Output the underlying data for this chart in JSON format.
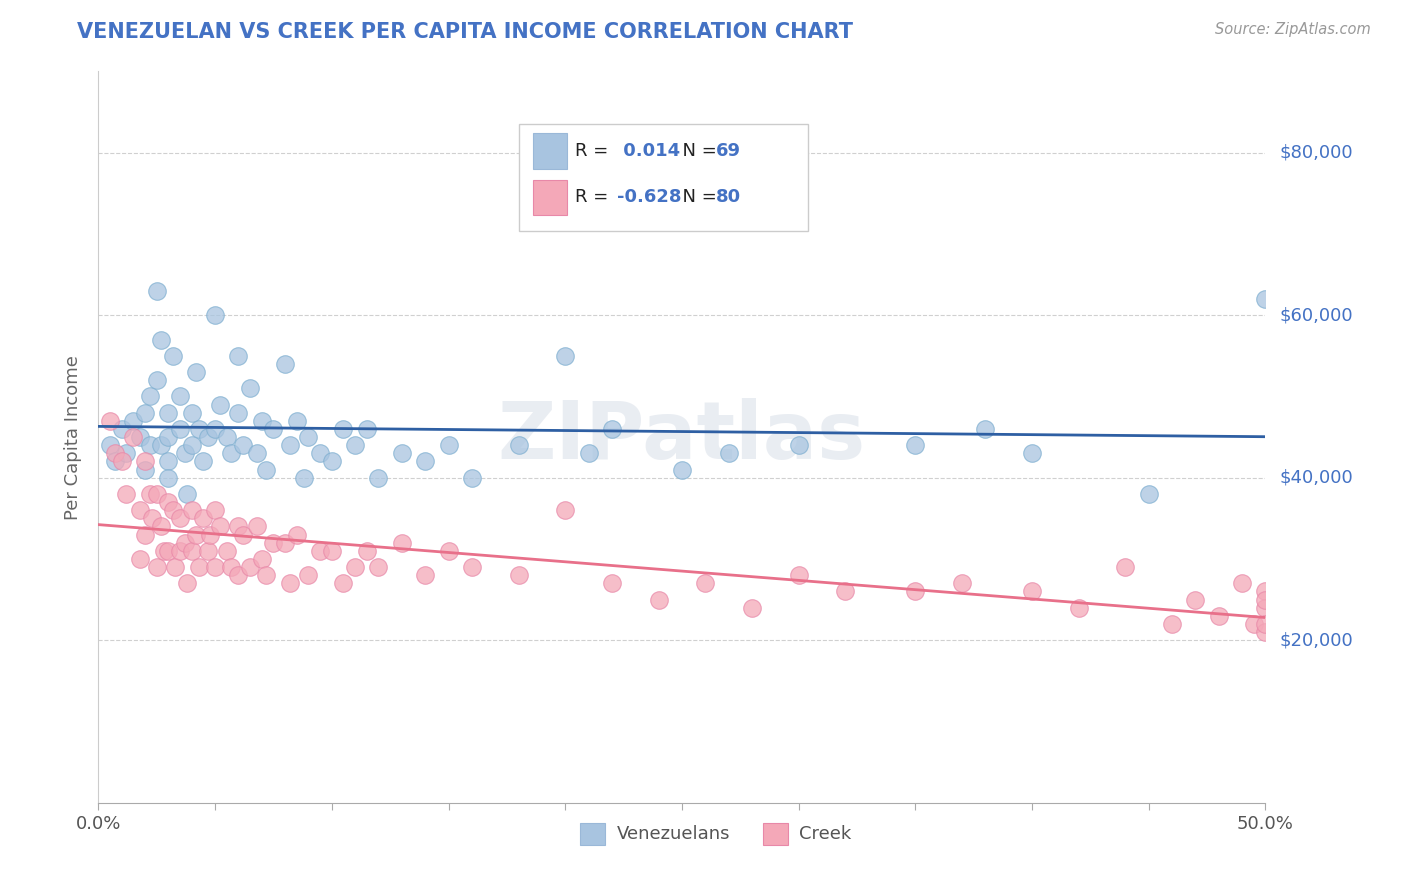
{
  "title": "VENEZUELAN VS CREEK PER CAPITA INCOME CORRELATION CHART",
  "source_text": "Source: ZipAtlas.com",
  "ylabel": "Per Capita Income",
  "xlim": [
    0.0,
    0.5
  ],
  "ylim": [
    0,
    90000
  ],
  "ytick_labels": [
    "$20,000",
    "$40,000",
    "$60,000",
    "$80,000"
  ],
  "ytick_values": [
    20000,
    40000,
    60000,
    80000
  ],
  "xtick_values": [
    0.0,
    0.05,
    0.1,
    0.15,
    0.2,
    0.25,
    0.3,
    0.35,
    0.4,
    0.45,
    0.5
  ],
  "xtick_show_labels": [
    0.0,
    0.5
  ],
  "venezuelan_color": "#a8c4e0",
  "creek_color": "#f4a8b8",
  "venezuelan_line_color": "#2e5fa3",
  "creek_line_color": "#e8708a",
  "legend_venezuelan_color": "#a8c4e0",
  "legend_creek_color": "#f4a8b8",
  "watermark": "ZIPatlas",
  "venezuelan_x": [
    0.005,
    0.007,
    0.01,
    0.012,
    0.015,
    0.018,
    0.02,
    0.02,
    0.022,
    0.022,
    0.025,
    0.025,
    0.027,
    0.027,
    0.03,
    0.03,
    0.03,
    0.03,
    0.032,
    0.035,
    0.035,
    0.037,
    0.038,
    0.04,
    0.04,
    0.042,
    0.043,
    0.045,
    0.047,
    0.05,
    0.05,
    0.052,
    0.055,
    0.057,
    0.06,
    0.06,
    0.062,
    0.065,
    0.068,
    0.07,
    0.072,
    0.075,
    0.08,
    0.082,
    0.085,
    0.088,
    0.09,
    0.095,
    0.1,
    0.105,
    0.11,
    0.115,
    0.12,
    0.13,
    0.14,
    0.15,
    0.16,
    0.18,
    0.2,
    0.21,
    0.22,
    0.25,
    0.27,
    0.3,
    0.35,
    0.38,
    0.4,
    0.45,
    0.5
  ],
  "venezuelan_y": [
    44000,
    42000,
    46000,
    43000,
    47000,
    45000,
    48000,
    41000,
    50000,
    44000,
    52000,
    63000,
    57000,
    44000,
    48000,
    45000,
    42000,
    40000,
    55000,
    46000,
    50000,
    43000,
    38000,
    48000,
    44000,
    53000,
    46000,
    42000,
    45000,
    60000,
    46000,
    49000,
    45000,
    43000,
    55000,
    48000,
    44000,
    51000,
    43000,
    47000,
    41000,
    46000,
    54000,
    44000,
    47000,
    40000,
    45000,
    43000,
    42000,
    46000,
    44000,
    46000,
    40000,
    43000,
    42000,
    44000,
    40000,
    44000,
    55000,
    43000,
    46000,
    41000,
    43000,
    44000,
    44000,
    46000,
    43000,
    38000,
    62000
  ],
  "creek_x": [
    0.005,
    0.007,
    0.01,
    0.012,
    0.015,
    0.018,
    0.018,
    0.02,
    0.02,
    0.022,
    0.023,
    0.025,
    0.025,
    0.027,
    0.028,
    0.03,
    0.03,
    0.032,
    0.033,
    0.035,
    0.035,
    0.037,
    0.038,
    0.04,
    0.04,
    0.042,
    0.043,
    0.045,
    0.047,
    0.048,
    0.05,
    0.05,
    0.052,
    0.055,
    0.057,
    0.06,
    0.06,
    0.062,
    0.065,
    0.068,
    0.07,
    0.072,
    0.075,
    0.08,
    0.082,
    0.085,
    0.09,
    0.095,
    0.1,
    0.105,
    0.11,
    0.115,
    0.12,
    0.13,
    0.14,
    0.15,
    0.16,
    0.18,
    0.2,
    0.22,
    0.24,
    0.26,
    0.28,
    0.3,
    0.32,
    0.35,
    0.37,
    0.4,
    0.42,
    0.44,
    0.46,
    0.47,
    0.48,
    0.49,
    0.495,
    0.5,
    0.5,
    0.5,
    0.5,
    0.5
  ],
  "creek_y": [
    47000,
    43000,
    42000,
    38000,
    45000,
    36000,
    30000,
    42000,
    33000,
    38000,
    35000,
    38000,
    29000,
    34000,
    31000,
    37000,
    31000,
    36000,
    29000,
    35000,
    31000,
    32000,
    27000,
    36000,
    31000,
    33000,
    29000,
    35000,
    31000,
    33000,
    36000,
    29000,
    34000,
    31000,
    29000,
    34000,
    28000,
    33000,
    29000,
    34000,
    30000,
    28000,
    32000,
    32000,
    27000,
    33000,
    28000,
    31000,
    31000,
    27000,
    29000,
    31000,
    29000,
    32000,
    28000,
    31000,
    29000,
    28000,
    36000,
    27000,
    25000,
    27000,
    24000,
    28000,
    26000,
    26000,
    27000,
    26000,
    24000,
    29000,
    22000,
    25000,
    23000,
    27000,
    22000,
    21000,
    26000,
    24000,
    22000,
    25000
  ]
}
